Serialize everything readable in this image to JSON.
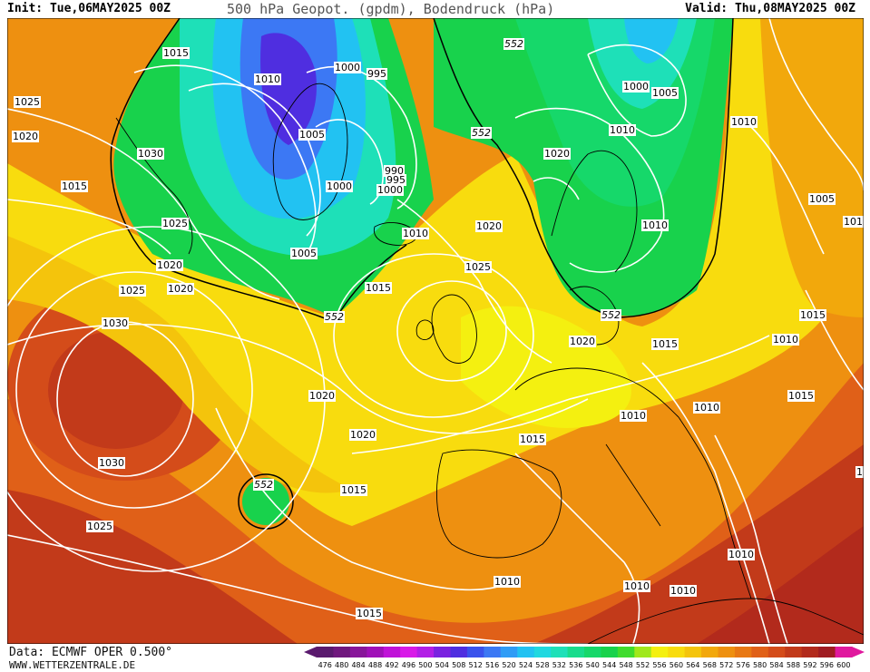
{
  "header": {
    "init": "Init: Tue,06MAY2025 00Z",
    "title": "500 hPa Geopot. (gpdm), Bodendruck (hPa)",
    "valid": "Valid: Thu,08MAY2025 00Z"
  },
  "footer": {
    "data_source": "Data: ECMWF OPER 0.500°",
    "website": "WWW.WETTERZENTRALE.DE"
  },
  "colorbar": {
    "labels": [
      "476",
      "480",
      "484",
      "488",
      "492",
      "496",
      "500",
      "504",
      "508",
      "512",
      "516",
      "520",
      "524",
      "528",
      "532",
      "536",
      "540",
      "544",
      "548",
      "552",
      "556",
      "560",
      "564",
      "568",
      "572",
      "576",
      "580",
      "584",
      "588",
      "592",
      "596",
      "600"
    ],
    "colors": [
      "#5a1a6e",
      "#70187e",
      "#88169a",
      "#a010b8",
      "#c012d8",
      "#d81ae8",
      "#b21ee6",
      "#7a22e0",
      "#4f2ee0",
      "#3a52ec",
      "#3c78f4",
      "#2f9cf6",
      "#22c2f2",
      "#20d8e0",
      "#1ee0b8",
      "#18dc8c",
      "#16d86a",
      "#18d24c",
      "#40dc2e",
      "#a0e81c",
      "#f4f010",
      "#f8dc0e",
      "#f4c40c",
      "#f2a80c",
      "#ee9010",
      "#e87814",
      "#e06018",
      "#d44c1a",
      "#c23a1a",
      "#b22a1c",
      "#a01c22",
      "#e0189e"
    ]
  },
  "map_labels": {
    "isobars": [
      {
        "text": "1015"
      },
      {
        "text": "1010"
      },
      {
        "text": "1025"
      },
      {
        "text": "1020"
      },
      {
        "text": "1030"
      },
      {
        "text": "1015"
      },
      {
        "text": "1025"
      },
      {
        "text": "1020"
      },
      {
        "text": "1025"
      },
      {
        "text": "1020"
      },
      {
        "text": "1030"
      },
      {
        "text": "1030"
      },
      {
        "text": "1025"
      },
      {
        "text": "1000"
      },
      {
        "text": "995"
      },
      {
        "text": "1005"
      },
      {
        "text": "990"
      },
      {
        "text": "995"
      },
      {
        "text": "1000"
      },
      {
        "text": "1000"
      },
      {
        "text": "1005"
      },
      {
        "text": "1010"
      },
      {
        "text": "1015"
      },
      {
        "text": "1020"
      },
      {
        "text": "1020"
      },
      {
        "text": "1025"
      },
      {
        "text": "1020"
      },
      {
        "text": "1015"
      },
      {
        "text": "1015"
      },
      {
        "text": "1020"
      },
      {
        "text": "1000"
      },
      {
        "text": "1005"
      },
      {
        "text": "1010"
      },
      {
        "text": "1020"
      },
      {
        "text": "1010"
      },
      {
        "text": "1010"
      },
      {
        "text": "1005"
      },
      {
        "text": "101"
      },
      {
        "text": "1015"
      },
      {
        "text": "1010"
      },
      {
        "text": "1015"
      },
      {
        "text": "1015"
      },
      {
        "text": "1010"
      },
      {
        "text": "1010"
      },
      {
        "text": "1010"
      },
      {
        "text": "1010"
      },
      {
        "text": "1010"
      },
      {
        "text": "1015"
      },
      {
        "text": "1010"
      },
      {
        "text": "1"
      }
    ],
    "geopotential": [
      {
        "text": "552"
      },
      {
        "text": "552"
      },
      {
        "text": "552"
      },
      {
        "text": "552"
      },
      {
        "text": "552"
      }
    ]
  }
}
